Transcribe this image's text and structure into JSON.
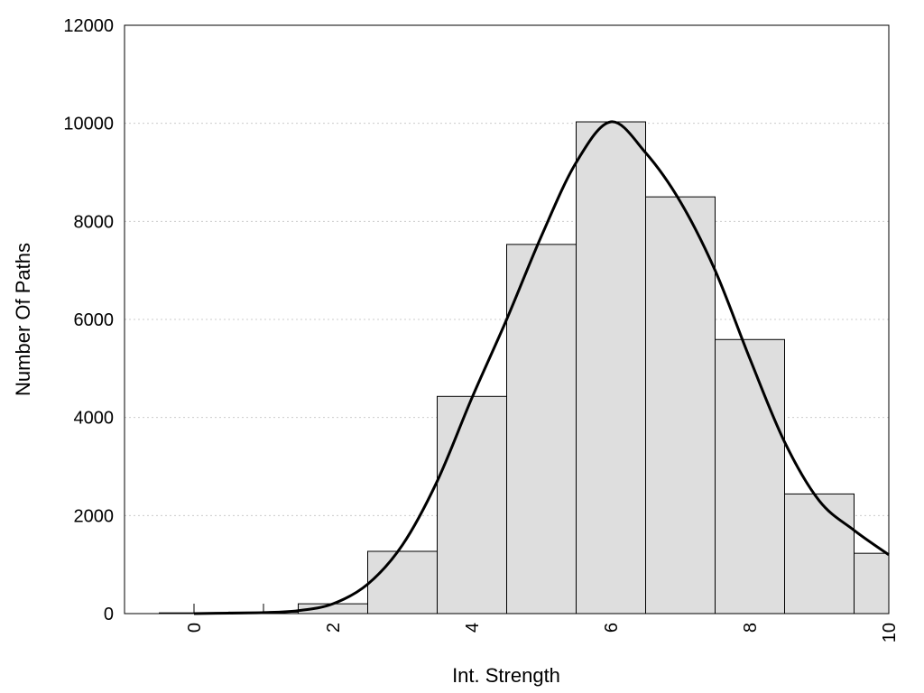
{
  "chart_data": {
    "type": "bar",
    "xlabel": "Int. Strength",
    "ylabel": "Number Of Paths",
    "xlim": [
      -1,
      10
    ],
    "ylim": [
      0,
      12000
    ],
    "x_ticks": [
      0,
      2,
      4,
      6,
      8,
      10
    ],
    "y_ticks": [
      0,
      2000,
      4000,
      6000,
      8000,
      10000,
      12000
    ],
    "grid": true,
    "bars": {
      "x": [
        0,
        1,
        2,
        3,
        4,
        5,
        6,
        7,
        8,
        9,
        10
      ],
      "values": [
        15,
        30,
        200,
        1270,
        4430,
        7530,
        10030,
        8500,
        5590,
        2440,
        1230
      ],
      "color": "#dedede"
    },
    "curve": {
      "x": [
        0,
        0.5,
        1,
        1.5,
        2,
        2.5,
        3,
        3.5,
        4,
        4.5,
        5,
        5.5,
        6,
        6.5,
        7,
        7.5,
        8,
        8.5,
        9,
        9.5,
        10
      ],
      "values": [
        0,
        10,
        20,
        60,
        200,
        600,
        1400,
        2700,
        4400,
        6000,
        7700,
        9200,
        10030,
        9400,
        8400,
        7000,
        5200,
        3500,
        2300,
        1700,
        1200
      ],
      "color": "#000000"
    }
  }
}
